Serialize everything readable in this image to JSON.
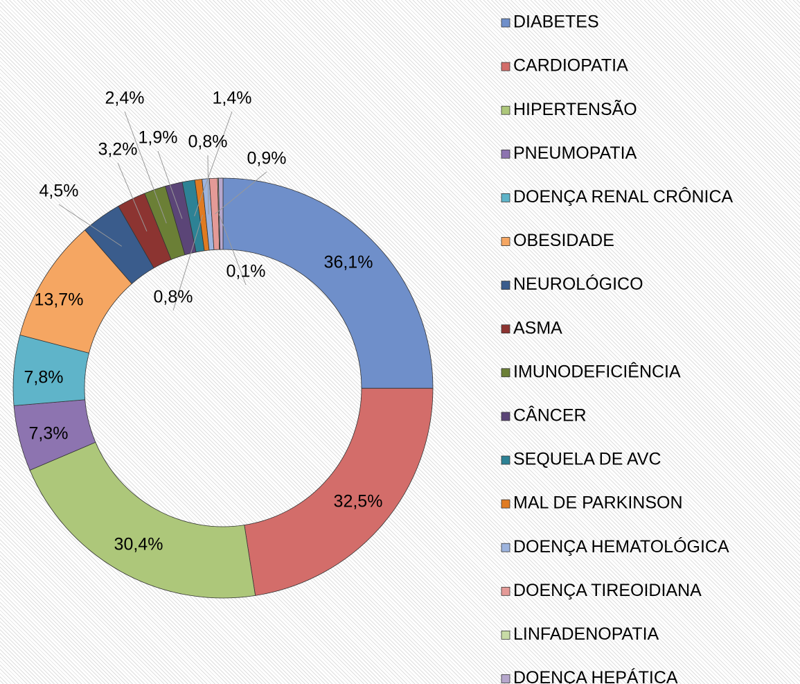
{
  "chart_data": {
    "type": "donut",
    "categories": [
      "DIABETES",
      "CARDIOPATIA",
      "HIPERTENSÃO",
      "PNEUMOPATIA",
      "DOENÇA RENAL CRÔNICA",
      "OBESIDADE",
      "NEUROLÓGICO",
      "ASMA",
      "IMUNODEFICIÊNCIA",
      "CÂNCER",
      "SEQUELA DE AVC",
      "MAL DE PARKINSON",
      "DOENÇA HEMATOLÓGICA",
      "DOENÇA TIREOIDIANA",
      "LINFADENOPATIA",
      "DOENÇA HEPÁTICA"
    ],
    "values": [
      36.1,
      32.5,
      30.4,
      7.3,
      7.8,
      13.7,
      4.5,
      3.2,
      2.4,
      1.9,
      1.4,
      0.8,
      0.8,
      0.9,
      0.1,
      0.5
    ],
    "value_labels": [
      "36,1%",
      "32,5%",
      "30,4%",
      "7,3%",
      "7,8%",
      "13,7%",
      "4,5%",
      "3,2%",
      "2,4%",
      "1,9%",
      "1,4%",
      "0,8%",
      "0,8%",
      "0,9%",
      "0,1%",
      null
    ],
    "colors": [
      "#6f8fca",
      "#d36d6a",
      "#adc77a",
      "#8d74b0",
      "#5fb4c9",
      "#f5a662",
      "#3a5c8c",
      "#8c3431",
      "#6b7f36",
      "#5b4577",
      "#2d8295",
      "#e07b22",
      "#9db4de",
      "#e49a97",
      "#c8dba6",
      "#b6a7cd"
    ],
    "legend": "right"
  }
}
